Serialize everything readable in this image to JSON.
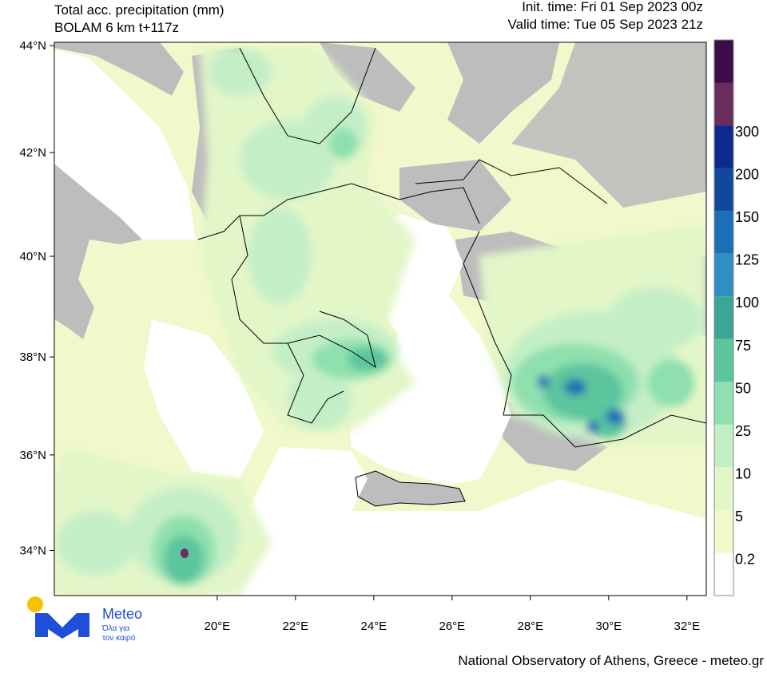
{
  "header": {
    "title": "Total acc. precipitation (mm)",
    "model": "BOLAM 6 km t+117z",
    "init_time": "Init. time: Fri 01 Sep 2023 00z",
    "valid_time": "Valid time: Tue 05 Sep 2023 21z"
  },
  "map": {
    "lon_ticks": [
      {
        "value": 20,
        "label": "20°E"
      },
      {
        "value": 22,
        "label": "22°E"
      },
      {
        "value": 24,
        "label": "24°E"
      },
      {
        "value": 26,
        "label": "26°E"
      },
      {
        "value": 28,
        "label": "28°E"
      },
      {
        "value": 30,
        "label": "30°E"
      },
      {
        "value": 32,
        "label": "32°E"
      }
    ],
    "lat_ticks": [
      {
        "value": 34,
        "label": "34°N"
      },
      {
        "value": 36,
        "label": "36°N"
      },
      {
        "value": 38,
        "label": "38°N"
      },
      {
        "value": 40,
        "label": "40°N"
      },
      {
        "value": 42,
        "label": "42°N"
      },
      {
        "value": 44,
        "label": "44°N"
      }
    ]
  },
  "colorbar": {
    "levels": [
      0.2,
      5,
      10,
      25,
      50,
      75,
      100,
      125,
      150,
      200,
      300
    ],
    "colors": [
      "#ffffff",
      "#f1f8cb",
      "#e2f6c8",
      "#c4efc6",
      "#8fe0ae",
      "#5cc59e",
      "#3ba596",
      "#2e8fc4",
      "#1a6fb6",
      "#12489c",
      "#0b2a8c",
      "#6a2c5c",
      "#3a0c48"
    ]
  },
  "logo": {
    "name": "Meteo",
    "tagline_1": "Όλα για",
    "tagline_2": "τον καιρό"
  },
  "footer": "National Observatory of Athens, Greece - meteo.gr"
}
